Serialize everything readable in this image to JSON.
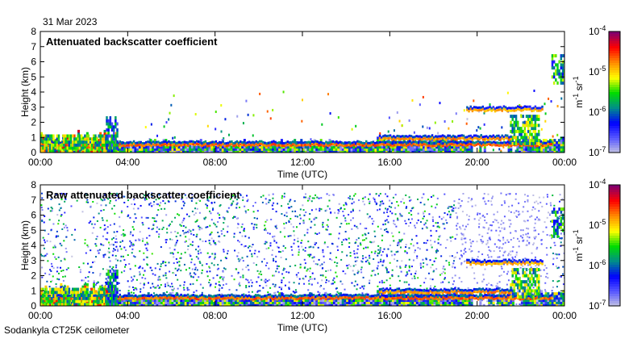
{
  "date": "31 Mar 2023",
  "footer": "Sodankyla CT25K ceilometer",
  "chart_data": [
    {
      "type": "heatmap",
      "title": "Attenuated backscatter coefficient",
      "xlabel": "Time (UTC)",
      "ylabel": "Height (km)",
      "xlim": [
        0,
        24
      ],
      "ylim": [
        0,
        8
      ],
      "xticks": [
        "00:00",
        "04:00",
        "08:00",
        "12:00",
        "16:00",
        "20:00",
        "00:00"
      ],
      "yticks": [
        "0",
        "1",
        "2",
        "3",
        "4",
        "5",
        "6",
        "7",
        "8"
      ],
      "colorbar": {
        "label": "m-1 sr-1",
        "ticks": [
          "10-7",
          "10-6",
          "10-5",
          "10-4"
        ],
        "range": [
          -7,
          -4
        ]
      },
      "layers": [
        {
          "name": "boundary-layer",
          "t0": 0,
          "t1": 23.4,
          "h": 0.5,
          "level": -4.5
        },
        {
          "name": "low-aerosol",
          "t0": 0,
          "t1": 3.5,
          "h0": 0,
          "h1": 1.2,
          "level": -5.5
        },
        {
          "name": "aerosol-plume",
          "t0": 3.0,
          "t1": 3.5,
          "h0": 0,
          "h1": 2.3,
          "level": -6.0
        },
        {
          "name": "cloud-top",
          "t0": 19.5,
          "t1": 23.0,
          "h": 2.8,
          "level": -4.7
        },
        {
          "name": "cloud-fallstreaks",
          "t0": 21.5,
          "t1": 22.8,
          "h0": 0.5,
          "h1": 2.5,
          "level": -5.5
        },
        {
          "name": "afternoon-layer",
          "t0": 15.5,
          "t1": 21.5,
          "h": 0.9,
          "level": -4.6
        },
        {
          "name": "late-aerosol",
          "t0": 23.4,
          "t1": 24,
          "h0": 4.5,
          "h1": 6.5,
          "level": -5.8
        }
      ]
    },
    {
      "type": "heatmap",
      "title": "Raw attenuated backscatter coefficient",
      "xlabel": "Time (UTC)",
      "ylabel": "Height (km)",
      "xlim": [
        0,
        24
      ],
      "ylim": [
        0,
        8
      ],
      "xticks": [
        "00:00",
        "04:00",
        "08:00",
        "12:00",
        "16:00",
        "20:00",
        "00:00"
      ],
      "yticks": [
        "0",
        "1",
        "2",
        "3",
        "4",
        "5",
        "6",
        "7",
        "8"
      ],
      "colorbar": {
        "label": "m-1 sr-1",
        "ticks": [
          "10-7",
          "10-6",
          "10-5",
          "10-4"
        ],
        "range": [
          -7,
          -4
        ]
      }
    }
  ]
}
